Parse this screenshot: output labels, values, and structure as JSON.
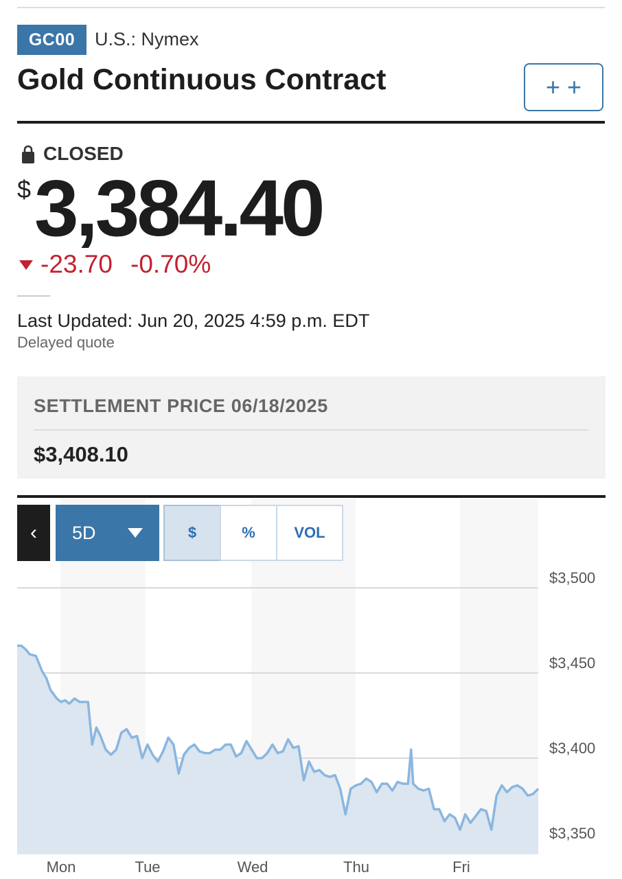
{
  "header": {
    "ticker": "GC00",
    "exchange": "U.S.: Nymex",
    "title": "Gold Continuous Contract",
    "watchlist_icon": "plus-plus-icon"
  },
  "quote": {
    "status": "CLOSED",
    "status_icon": "lock-icon",
    "currency_symbol": "$",
    "price": "3,384.40",
    "change": "-23.70",
    "change_percent": "-0.70%",
    "change_direction": "down",
    "change_color": "#c0222e",
    "last_updated": "Last Updated: Jun 20, 2025 4:59 p.m. EDT",
    "delay_note": "Delayed quote"
  },
  "settlement": {
    "label": "SETTLEMENT PRICE 06/18/2025",
    "value": "$3,408.10"
  },
  "chart_controls": {
    "back_icon": "chevron-left-icon",
    "range": "5D",
    "modes": [
      {
        "label": "$",
        "active": true
      },
      {
        "label": "%",
        "active": false
      },
      {
        "label": "VOL",
        "active": false
      }
    ]
  },
  "colors": {
    "accent": "#3a76a8",
    "line": "#8bb6df",
    "negative": "#c0222e"
  },
  "chart_data": {
    "type": "area",
    "x_tick_labels": [
      "Mon",
      "Tue",
      "Wed",
      "Thu",
      "Fri"
    ],
    "y_tick_labels": [
      "$3,500",
      "$3,450",
      "$3,400",
      "$3,350"
    ],
    "y_ticks": [
      3500,
      3450,
      3400,
      3350
    ],
    "ylim": [
      3350,
      3500
    ],
    "xlim": [
      0,
      5
    ],
    "grid": true,
    "series": [
      {
        "x": [
          0.0,
          0.04,
          0.08,
          0.12,
          0.18,
          0.24,
          0.28,
          0.32,
          0.38,
          0.42,
          0.46,
          0.5,
          0.55,
          0.6,
          0.64,
          0.68,
          0.72,
          0.76,
          0.8,
          0.85,
          0.9,
          0.95,
          1.0,
          1.05,
          1.1,
          1.15,
          1.2,
          1.25,
          1.3,
          1.35,
          1.4,
          1.45,
          1.5,
          1.55,
          1.6,
          1.65,
          1.7,
          1.75,
          1.8,
          1.85,
          1.9,
          1.95,
          2.0,
          2.05,
          2.1,
          2.15,
          2.2,
          2.25,
          2.3,
          2.35,
          2.4,
          2.45,
          2.5,
          2.55,
          2.6,
          2.65,
          2.7,
          2.75,
          2.8,
          2.85,
          2.9,
          2.95,
          3.0,
          3.05,
          3.1,
          3.15,
          3.2,
          3.25,
          3.3,
          3.35,
          3.4,
          3.45,
          3.5,
          3.55,
          3.6,
          3.65,
          3.7,
          3.75,
          3.78,
          3.8,
          3.85,
          3.9,
          3.95,
          4.0,
          4.05,
          4.1,
          4.15,
          4.2,
          4.25,
          4.3,
          4.35,
          4.4,
          4.45,
          4.5,
          4.55,
          4.6,
          4.65,
          4.7,
          4.75,
          4.8,
          4.85,
          4.9,
          4.95,
          5.0
        ],
        "y": [
          3466,
          3466,
          3464,
          3461,
          3460,
          3451,
          3447,
          3440,
          3435,
          3433,
          3434,
          3432,
          3435,
          3433,
          3433,
          3433,
          3408,
          3418,
          3413,
          3405,
          3402,
          3405,
          3415,
          3417,
          3412,
          3413,
          3400,
          3408,
          3402,
          3398,
          3404,
          3412,
          3408,
          3391,
          3402,
          3406,
          3408,
          3404,
          3403,
          3403,
          3405,
          3405,
          3408,
          3408,
          3401,
          3403,
          3410,
          3405,
          3400,
          3400,
          3403,
          3408,
          3403,
          3404,
          3411,
          3406,
          3407,
          3387,
          3398,
          3392,
          3393,
          3390,
          3389,
          3390,
          3382,
          3367,
          3382,
          3384,
          3385,
          3388,
          3386,
          3380,
          3385,
          3385,
          3381,
          3386,
          3385,
          3385,
          3405,
          3385,
          3382,
          3381,
          3382,
          3370,
          3370,
          3363,
          3367,
          3365,
          3358,
          3367,
          3362,
          3366,
          3370,
          3369,
          3358,
          3378,
          3384,
          3380,
          3383,
          3384,
          3382,
          3378,
          3379,
          3382
        ]
      }
    ]
  }
}
